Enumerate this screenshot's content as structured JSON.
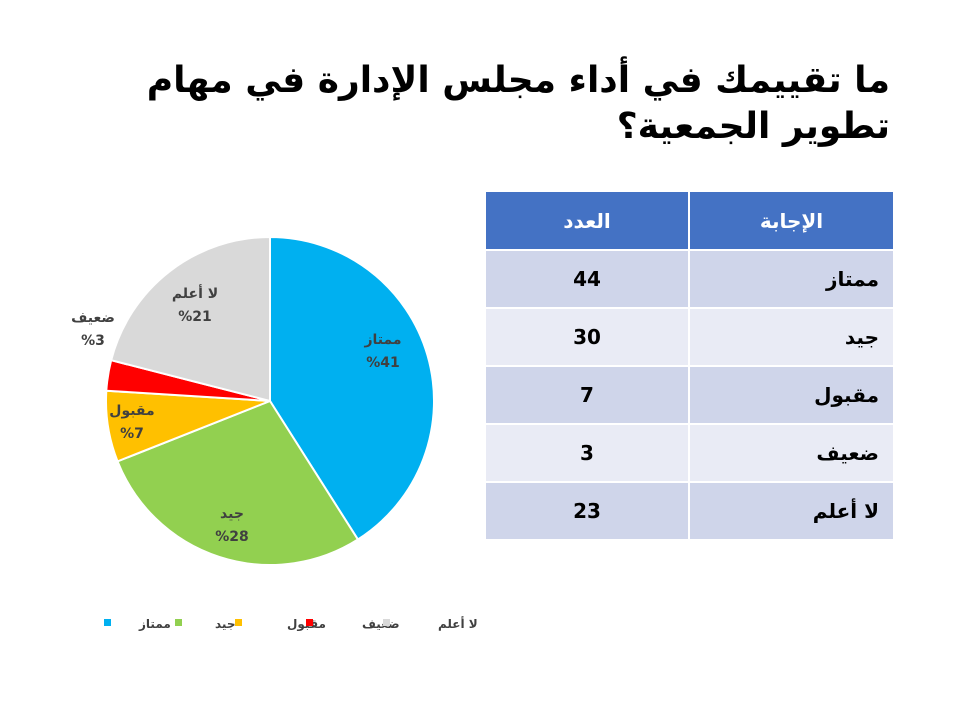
{
  "title": "ما تقييمك في أداء مجلس الإدارة في مهام تطوير الجمعية؟",
  "chart_data": {
    "type": "pie",
    "categories": [
      "ممتاز",
      "جيد",
      "مقبول",
      "ضعيف",
      "لا أعلم"
    ],
    "values": [
      41,
      28,
      7,
      3,
      21
    ],
    "value_labels": [
      "%41",
      "%28",
      "%7",
      "%3",
      "%21"
    ],
    "colors": [
      "#00B0F0",
      "#92D050",
      "#FFC000",
      "#FF0000",
      "#D9D9D9"
    ],
    "legend": "bottom"
  },
  "table": {
    "headers": [
      "الإجابة",
      "العدد"
    ],
    "rows": [
      [
        "ممتاز",
        "44"
      ],
      [
        "جيد",
        "30"
      ],
      [
        "مقبول",
        "7"
      ],
      [
        "ضعيف",
        "3"
      ],
      [
        "لا أعلم",
        "23"
      ]
    ]
  }
}
